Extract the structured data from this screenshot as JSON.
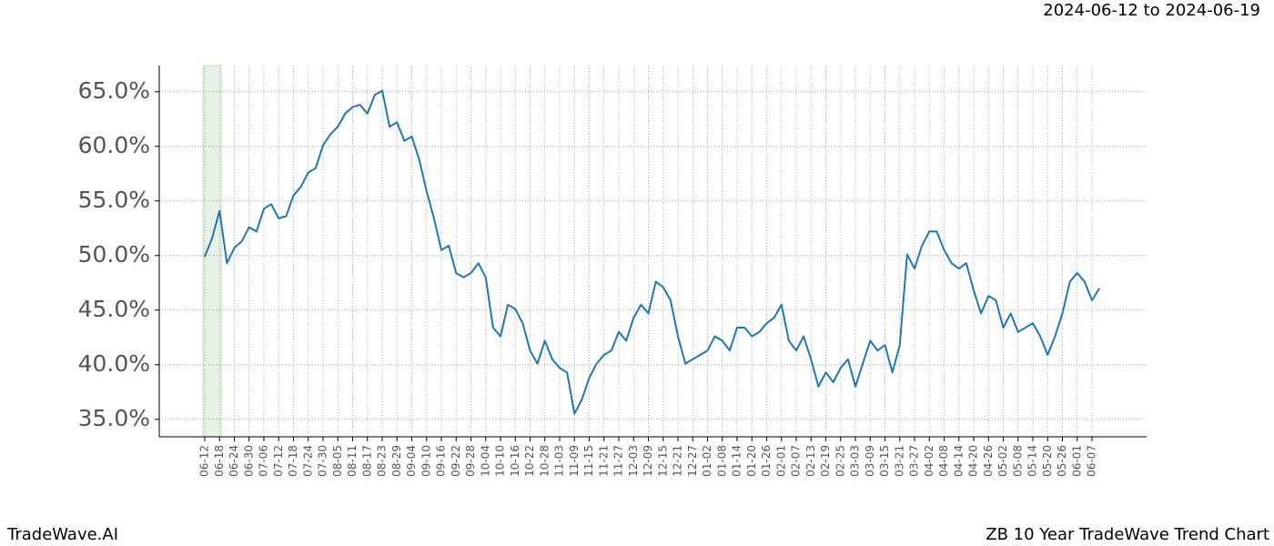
{
  "chart_data": {
    "type": "line",
    "title": "ZB 10 Year TradeWave Trend Chart",
    "subtitle": "2024-06-12 to 2024-06-19",
    "brand": "TradeWave.AI",
    "color": "#1f77b4",
    "highlight": [
      0,
      2
    ],
    "highlight_color": "#e6f2e6",
    "grid": true,
    "categories": [
      "06-12",
      null,
      "06-18",
      null,
      "06-24",
      null,
      "06-30",
      null,
      "07-06",
      null,
      "07-12",
      null,
      "07-18",
      null,
      "07-24",
      null,
      "07-30",
      null,
      "08-05",
      null,
      "08-11",
      null,
      "08-17",
      null,
      "08-23",
      null,
      "08-29",
      null,
      "09-04",
      null,
      "09-10",
      null,
      "09-16",
      null,
      "09-22",
      null,
      "09-28",
      null,
      "10-04",
      null,
      "10-10",
      null,
      "10-16",
      null,
      "10-22",
      null,
      "10-28",
      null,
      "11-03",
      null,
      "11-09",
      null,
      "11-15",
      null,
      "11-21",
      null,
      "11-27",
      null,
      "12-03",
      null,
      "12-09",
      null,
      "12-15",
      null,
      "12-21",
      null,
      "12-27",
      null,
      "01-02",
      null,
      "01-08",
      null,
      "01-14",
      null,
      "01-20",
      null,
      "01-26",
      null,
      "02-01",
      null,
      "02-07",
      null,
      "02-13",
      null,
      "02-19",
      null,
      "02-25",
      null,
      "03-03",
      null,
      "03-09",
      null,
      "03-15",
      null,
      "03-21",
      null,
      "03-27",
      null,
      "04-02",
      null,
      "04-08",
      null,
      "04-14",
      null,
      "04-20",
      null,
      "04-26",
      null,
      "05-02",
      null,
      "05-08",
      null,
      "05-14",
      null,
      "05-20",
      null,
      "05-26",
      null,
      "06-01",
      null,
      "06-07",
      null
    ],
    "values": [
      49.9,
      51.6,
      54.1,
      49.3,
      50.7,
      51.3,
      52.6,
      52.2,
      54.3,
      54.7,
      53.4,
      53.6,
      55.5,
      56.3,
      57.6,
      58.0,
      60.1,
      61.1,
      61.8,
      63.0,
      63.6,
      63.8,
      63.0,
      64.7,
      65.1,
      61.8,
      62.2,
      60.5,
      60.9,
      58.8,
      55.9,
      53.4,
      50.5,
      50.9,
      48.4,
      48.0,
      48.4,
      49.3,
      48.0,
      43.4,
      42.6,
      45.5,
      45.1,
      43.8,
      41.3,
      40.1,
      42.2,
      40.5,
      39.7,
      39.3,
      35.5,
      36.8,
      38.8,
      40.1,
      40.9,
      41.3,
      43.0,
      42.2,
      44.3,
      45.5,
      44.7,
      47.6,
      47.1,
      45.9,
      42.6,
      40.1,
      40.5,
      40.9,
      41.3,
      42.6,
      42.2,
      41.3,
      43.4,
      43.4,
      42.6,
      43.0,
      43.8,
      44.3,
      45.5,
      42.2,
      41.3,
      42.6,
      40.5,
      38.0,
      39.3,
      38.4,
      39.7,
      40.5,
      38.0,
      40.1,
      42.2,
      41.3,
      41.8,
      39.3,
      41.8,
      50.1,
      48.8,
      50.9,
      52.2,
      52.2,
      50.5,
      49.3,
      48.8,
      49.3,
      46.8,
      44.7,
      46.3,
      45.9,
      43.4,
      44.7,
      43.0,
      43.4,
      43.8,
      42.6,
      40.9,
      42.6,
      44.7,
      47.6,
      48.4,
      47.6,
      45.9,
      47.0
    ],
    "ylim": [
      33.4,
      67.4
    ],
    "yticks": [
      {
        "value": 35,
        "label": "35.0%"
      },
      {
        "value": 40,
        "label": "40.0%"
      },
      {
        "value": 45,
        "label": "45.0%"
      },
      {
        "value": 50,
        "label": "50.0%"
      },
      {
        "value": 55,
        "label": "55.0%"
      },
      {
        "value": 60,
        "label": "60.0%"
      },
      {
        "value": 65,
        "label": "65.0%"
      }
    ]
  }
}
